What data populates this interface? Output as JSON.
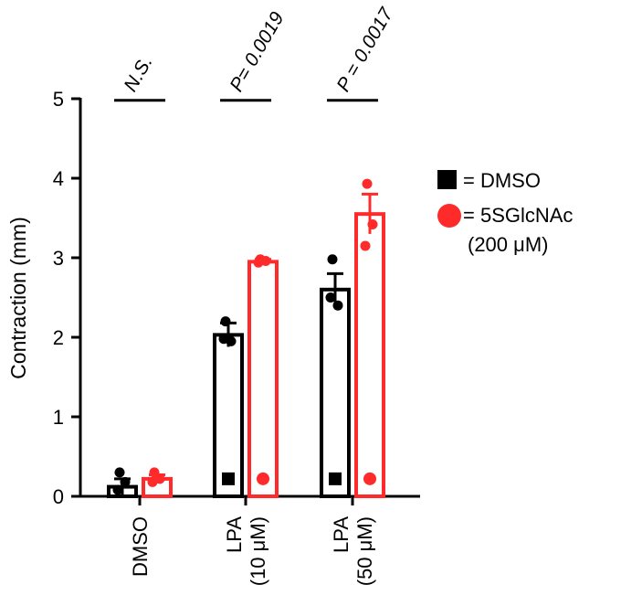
{
  "chart_data": {
    "type": "bar",
    "ylabel": "Contraction (mm)",
    "xlabel": "",
    "title": "",
    "ylim": [
      0,
      5
    ],
    "yticks": [
      "0",
      "1",
      "2",
      "3",
      "4",
      "5"
    ],
    "categories": [
      {
        "lines": [
          "DMSO"
        ]
      },
      {
        "lines": [
          "LPA",
          "(10 μM)"
        ]
      },
      {
        "lines": [
          "LPA",
          "(50 μM)"
        ]
      }
    ],
    "series": [
      {
        "name": "= DMSO",
        "color": "#000000",
        "marker": "square",
        "values": [
          0.12,
          2.03,
          2.6
        ],
        "errors": [
          0.1,
          0.15,
          0.2
        ],
        "points": [
          [
            0.3,
            0.18,
            0.08
          ],
          [
            2.2,
            1.95,
            1.98
          ],
          [
            2.98,
            2.4,
            2.5
          ]
        ],
        "marker_y": 0.22
      },
      {
        "name": "= 5SGlcNAc",
        "name_line2": "(200 μM)",
        "color": "#ff2a2a",
        "marker": "circle",
        "values": [
          0.22,
          2.95,
          3.55
        ],
        "errors": [
          0.05,
          0.03,
          0.25
        ],
        "points": [
          [
            0.3,
            0.22,
            0.18
          ],
          [
            2.98,
            2.96,
            2.94
          ],
          [
            3.93,
            3.42,
            3.15
          ]
        ],
        "marker_y": 0.22
      }
    ],
    "significance": [
      "N.S.",
      "P= 0.0019",
      "P = 0.0017"
    ],
    "significance_y": 4.98,
    "legend_position": "right"
  }
}
